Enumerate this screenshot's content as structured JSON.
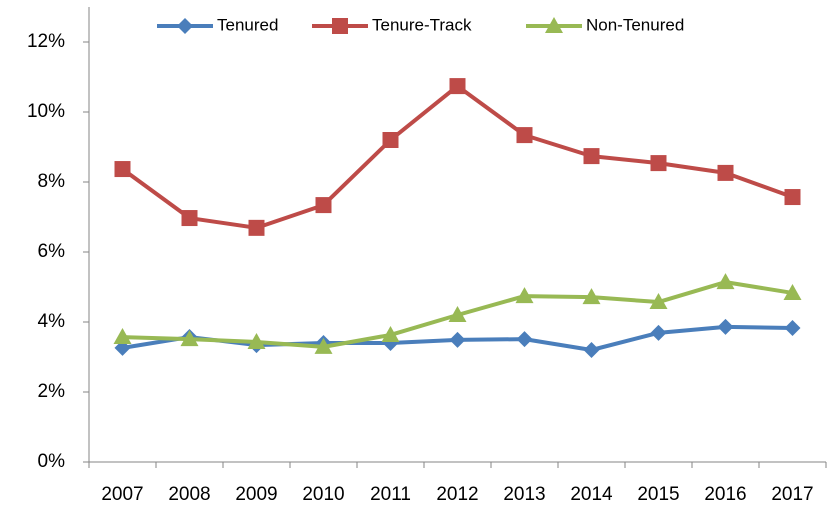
{
  "chart_data": {
    "type": "line",
    "categories": [
      "2007",
      "2008",
      "2009",
      "2010",
      "2011",
      "2012",
      "2013",
      "2014",
      "2015",
      "2016",
      "2017"
    ],
    "series": [
      {
        "name": "Tenured",
        "color": "#4a7ebb",
        "marker": "diamond",
        "values": [
          3.26,
          3.57,
          3.34,
          3.4,
          3.4,
          3.49,
          3.51,
          3.2,
          3.69,
          3.86,
          3.83
        ]
      },
      {
        "name": "Tenure-Track",
        "color": "#be4b48",
        "marker": "square",
        "values": [
          8.37,
          6.97,
          6.69,
          7.34,
          9.2,
          10.74,
          9.34,
          8.74,
          8.54,
          8.26,
          7.57
        ]
      },
      {
        "name": "Non-Tenured",
        "color": "#98b954",
        "marker": "triangle",
        "values": [
          3.57,
          3.51,
          3.43,
          3.29,
          3.63,
          4.2,
          4.74,
          4.71,
          4.57,
          5.14,
          4.83
        ]
      }
    ],
    "ylim": [
      0,
      12
    ],
    "yticks": [
      {
        "value": 0,
        "label": "0%"
      },
      {
        "value": 2,
        "label": "2%"
      },
      {
        "value": 4,
        "label": "4%"
      },
      {
        "value": 6,
        "label": "6%"
      },
      {
        "value": 8,
        "label": "8%"
      },
      {
        "value": 10,
        "label": "10%"
      },
      {
        "value": 12,
        "label": "12%"
      }
    ],
    "grid": false,
    "legend": "top"
  }
}
